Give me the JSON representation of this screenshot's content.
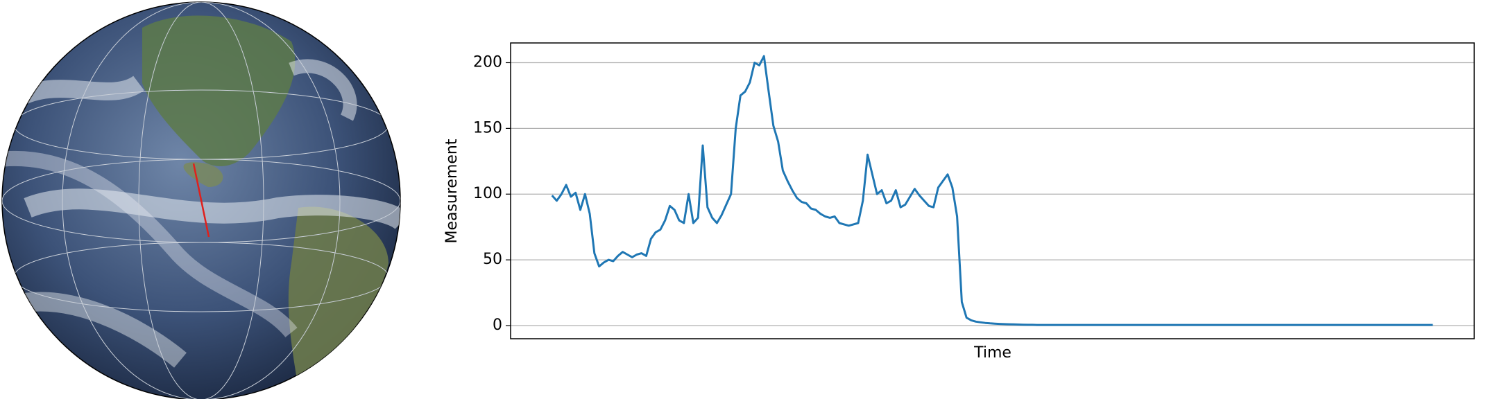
{
  "chart_data": {
    "type": "line",
    "xlabel": "Time",
    "ylabel": "Measurement",
    "series": [
      {
        "name": "Measurement",
        "color": "#1f77b4",
        "values": [
          99,
          95,
          100,
          107,
          98,
          101,
          88,
          100,
          85,
          55,
          45,
          48,
          50,
          49,
          53,
          56,
          54,
          52,
          54,
          55,
          53,
          66,
          71,
          73,
          80,
          91,
          88,
          80,
          78,
          100,
          78,
          82,
          137,
          90,
          82,
          78,
          84,
          92,
          100,
          150,
          175,
          178,
          185,
          200,
          198,
          205,
          178,
          152,
          140,
          118,
          110,
          103,
          97,
          94,
          93,
          89,
          88,
          85,
          83,
          82,
          83,
          78,
          77,
          76,
          77,
          78,
          95,
          130,
          115,
          100,
          103,
          93,
          95,
          103,
          90,
          92,
          98,
          104,
          99,
          95,
          91,
          90,
          105,
          110,
          115,
          105,
          83,
          18,
          6,
          4,
          3,
          2.5,
          2,
          1.7,
          1.5,
          1.3,
          1.1,
          1.0,
          0.9,
          0.8,
          0.7,
          0.6,
          0.6,
          0.5,
          0.5,
          0.5,
          0.5,
          0.5,
          0.5,
          0.5,
          0.5,
          0.5,
          0.5,
          0.5,
          0.5,
          0.5,
          0.5,
          0.5,
          0.5,
          0.5,
          0.5,
          0.5,
          0.5,
          0.5,
          0.5,
          0.5,
          0.5,
          0.5,
          0.5,
          0.5,
          0.5,
          0.5,
          0.5,
          0.5,
          0.5,
          0.5,
          0.5,
          0.5,
          0.5,
          0.5,
          0.5,
          0.5,
          0.5,
          0.5,
          0.5,
          0.5,
          0.5,
          0.5,
          0.5,
          0.5,
          0.5,
          0.5,
          0.5,
          0.5,
          0.5,
          0.5,
          0.5,
          0.5,
          0.5,
          0.5,
          0.5,
          0.5,
          0.5,
          0.5,
          0.5,
          0.5,
          0.5,
          0.5,
          0.5,
          0.5,
          0.5,
          0.5,
          0.5,
          0.5,
          0.5,
          0.5,
          0.5,
          0.5,
          0.5,
          0.5,
          0.5,
          0.5,
          0.5,
          0.5,
          0.5,
          0.5,
          0.5,
          0.5
        ]
      }
    ],
    "ylim": [
      -10,
      215
    ],
    "yticks": [
      0,
      50,
      100,
      150,
      200
    ],
    "grid": true
  }
}
